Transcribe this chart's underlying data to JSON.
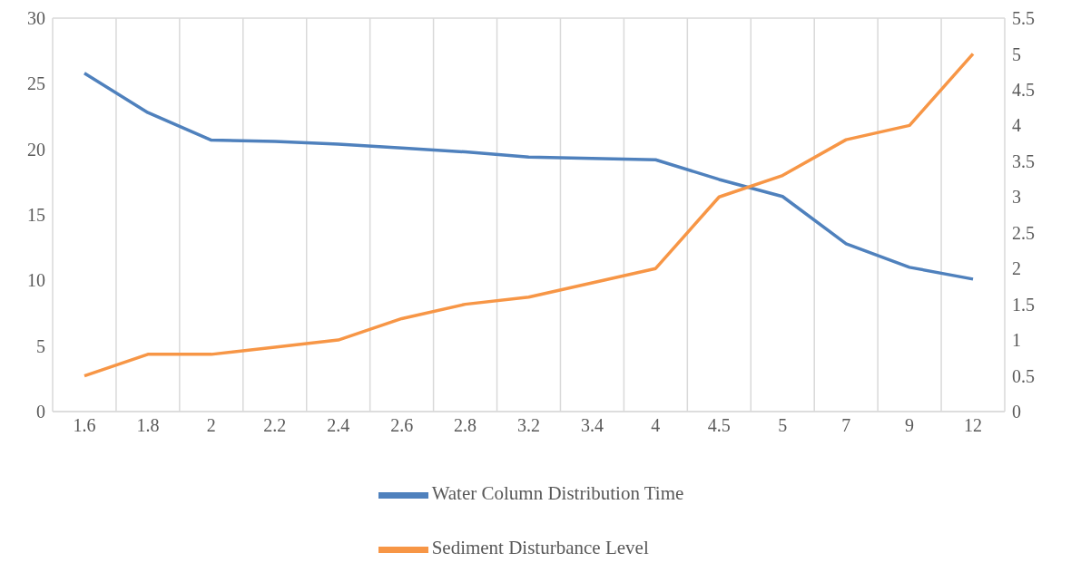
{
  "chart_data": {
    "type": "line",
    "categories": [
      "1.6",
      "1.8",
      "2",
      "2.2",
      "2.4",
      "2.6",
      "2.8",
      "3.2",
      "3.4",
      "4",
      "4.5",
      "5",
      "7",
      "9",
      "12"
    ],
    "series": [
      {
        "name": "Water Column Distribution Time",
        "color": "#4f81bd",
        "values": [
          25.8,
          22.8,
          20.7,
          20.6,
          20.4,
          20.1,
          19.8,
          19.4,
          19.3,
          19.2,
          17.7,
          16.4,
          12.8,
          11.0,
          10.1
        ]
      },
      {
        "name": "Sediment Disturbance Level",
        "color": "#f79646",
        "axis": "y2",
        "values": [
          0.5,
          0.8,
          0.8,
          0.9,
          1.0,
          1.3,
          1.5,
          1.6,
          1.8,
          2.0,
          3.0,
          3.3,
          3.8,
          4.0,
          5.0
        ]
      }
    ],
    "ylim": [
      0,
      30
    ],
    "yticks": [
      0,
      5,
      10,
      15,
      20,
      25,
      30
    ],
    "y2lim": [
      0,
      5.5
    ],
    "y2ticks": [
      0,
      0.5,
      1,
      1.5,
      2,
      2.5,
      3,
      3.5,
      4,
      4.5,
      5,
      5.5
    ],
    "grid": true,
    "legend": "bottom",
    "marker": "none",
    "line_style": "solid"
  }
}
